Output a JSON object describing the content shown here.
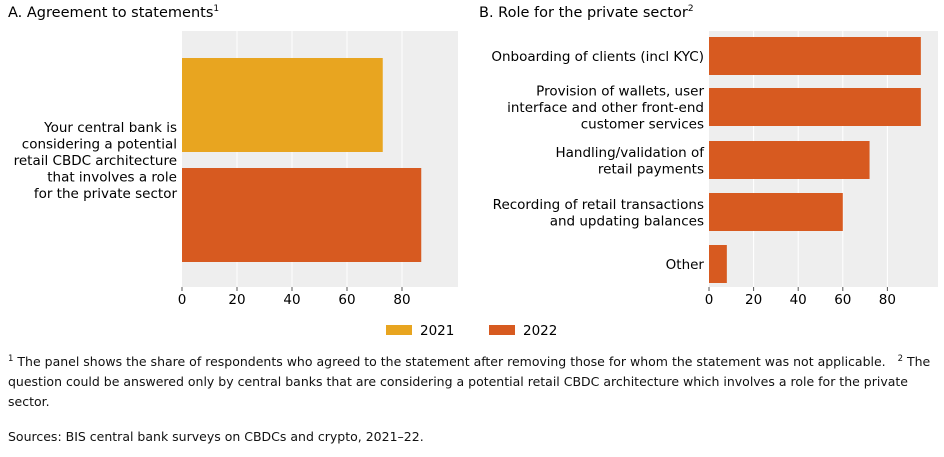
{
  "colors": {
    "y2021": "#E8A520",
    "y2022": "#D75A20",
    "panel_bg": "#EEEEEE",
    "grid": "#FFFFFF"
  },
  "chart_data": [
    {
      "type": "bar",
      "orientation": "horizontal",
      "title": "A. Agreement to statements",
      "title_sup": "1",
      "categories": [
        "Your central bank is considering a potential retail CBDC architecture that involves a role for the private sector"
      ],
      "category_lines": [
        [
          "Your central bank is",
          "considering a potential",
          "retail CBDC architecture",
          "that involves a role",
          "for the private sector"
        ]
      ],
      "series": [
        {
          "name": "2021",
          "values": [
            73
          ]
        },
        {
          "name": "2022",
          "values": [
            87
          ]
        }
      ],
      "xlim": [
        0,
        100
      ],
      "xticks": [
        "0",
        "20",
        "40",
        "60",
        "80"
      ],
      "grid": true
    },
    {
      "type": "bar",
      "orientation": "horizontal",
      "title": "B. Role for the private sector",
      "title_sup": "2",
      "categories": [
        "Onboarding of clients (incl KYC)",
        "Provision of wallets, user interface and other front-end customer services",
        "Handling/validation of retail payments",
        "Recording of retail transactions and updating balances",
        "Other"
      ],
      "category_lines": [
        [
          "Onboarding of clients (incl KYC)"
        ],
        [
          "Provision of wallets, user",
          "interface and other front-end",
          "customer services"
        ],
        [
          "Handling/validation of",
          "retail payments"
        ],
        [
          "Recording of retail transactions",
          "and updating balances"
        ],
        [
          "Other"
        ]
      ],
      "series": [
        {
          "name": "2022",
          "values": [
            95,
            95,
            72,
            60,
            8
          ]
        }
      ],
      "xlim": [
        0,
        100
      ],
      "xticks": [
        "0",
        "20",
        "40",
        "60",
        "80"
      ],
      "grid": true
    }
  ],
  "legend": [
    {
      "label": "2021"
    },
    {
      "label": "2022"
    }
  ],
  "footnotes": {
    "n1_mark": "1",
    "n1": "The panel shows the share of respondents who agreed to the statement after removing those for whom the statement was not applicable.",
    "n2_mark": "2",
    "n2": "The question could be answered only by central banks that are considering a potential retail CBDC architecture which involves a role for the private sector."
  },
  "sources": "Sources: BIS central bank surveys on CBDCs and crypto, 2021–22."
}
